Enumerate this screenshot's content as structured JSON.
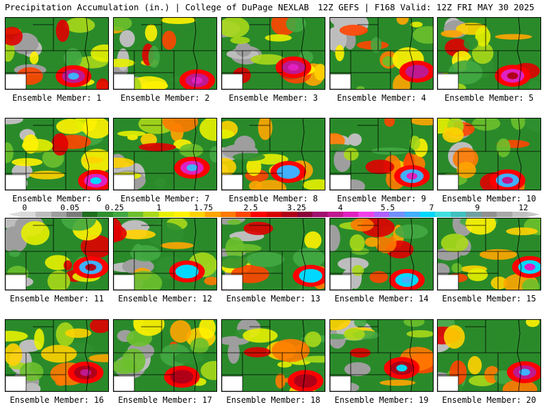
{
  "header": {
    "title_left": "Precipitation Accumulation (in.) | College of DuPage NEXLAB",
    "title_right": "12Z GEFS | F168 Valid: 12Z FRI MAY 30 2025"
  },
  "colorbar": {
    "tick_labels": [
      "0",
      "0.05",
      "0.25",
      "1",
      "1.75",
      "2.5",
      "3.25",
      "4",
      "5.5",
      "7",
      "9",
      "12"
    ],
    "colors": [
      "#d9d9d9",
      "#bdbdbd",
      "#9e9e9e",
      "#7a7a7a",
      "#1e6e1e",
      "#2f8f2f",
      "#42a842",
      "#6cc02c",
      "#a8d81a",
      "#e6f000",
      "#fff200",
      "#ffd200",
      "#ffa500",
      "#ff7a00",
      "#ff4500",
      "#ff0000",
      "#d80000",
      "#b00018",
      "#8b0038",
      "#a0106e",
      "#c0188e",
      "#e020c0",
      "#f040e8",
      "#b060ff",
      "#7090ff",
      "#40b0ff",
      "#00d8ff",
      "#40e0e0",
      "#40c0c0",
      "#70a0a0",
      "#909090",
      "#a8a8a8",
      "#c0c0c0"
    ]
  },
  "panels": [
    {
      "label": "Ensemble Member: 1"
    },
    {
      "label": "Ensemble Member: 2"
    },
    {
      "label": "Ensemble Member: 3"
    },
    {
      "label": "Ensemble Member: 4"
    },
    {
      "label": "Ensemble Member: 5"
    },
    {
      "label": "Ensemble Member: 6"
    },
    {
      "label": "Ensemble Member: 7"
    },
    {
      "label": "Ensemble Member: 8"
    },
    {
      "label": "Ensemble Member: 9"
    },
    {
      "label": "Ensemble Member: 10"
    },
    {
      "label": "Ensemble Member: 11"
    },
    {
      "label": "Ensemble Member: 12"
    },
    {
      "label": "Ensemble Member: 13"
    },
    {
      "label": "Ensemble Member: 14"
    },
    {
      "label": "Ensemble Member: 15"
    },
    {
      "label": "Ensemble Member: 16"
    },
    {
      "label": "Ensemble Member: 17"
    },
    {
      "label": "Ensemble Member: 18"
    },
    {
      "label": "Ensemble Member: 19"
    },
    {
      "label": "Ensemble Member: 20"
    }
  ]
}
